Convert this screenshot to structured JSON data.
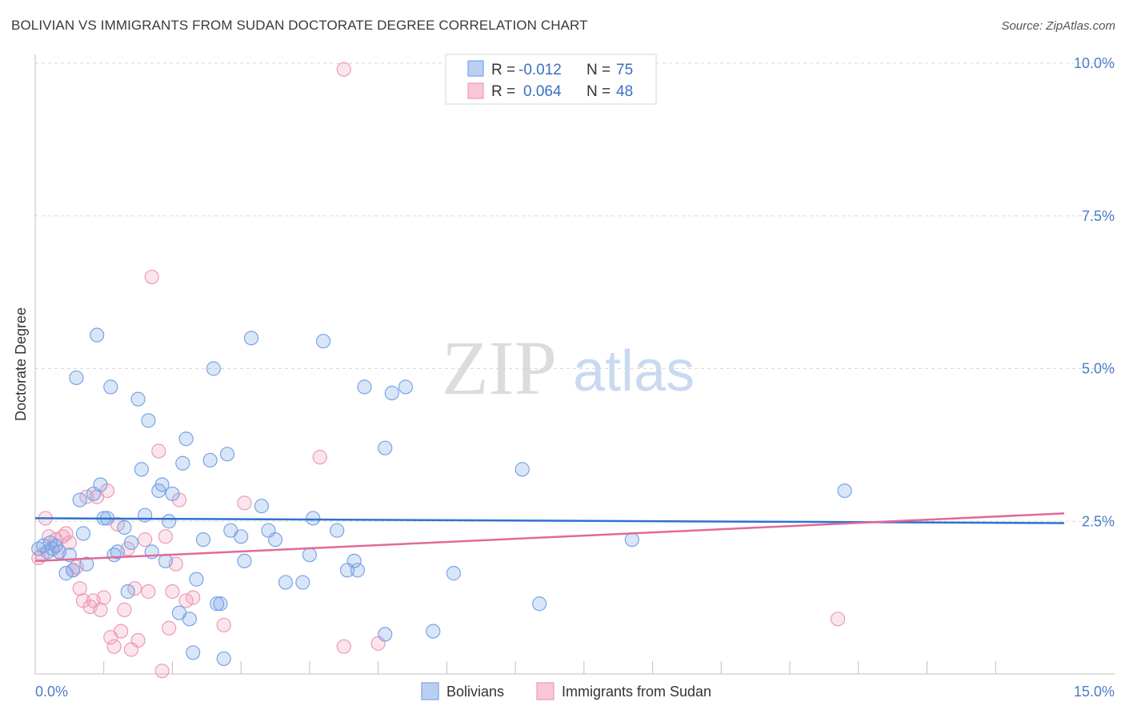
{
  "header": {
    "title": "BOLIVIAN VS IMMIGRANTS FROM SUDAN DOCTORATE DEGREE CORRELATION CHART",
    "source": "Source: ZipAtlas.com"
  },
  "watermark": {
    "part1": "ZIP",
    "part2": "atlas"
  },
  "colors": {
    "blue_fill": "rgba(120,165,230,0.28)",
    "blue_stroke": "#7aa3e6",
    "blue_line": "#2f72d0",
    "pink_fill": "rgba(240,150,180,0.25)",
    "pink_stroke": "#ee9ab8",
    "pink_line": "#e06a98",
    "grid": "#d9d9d9",
    "tick_label": "#4a7cc9"
  },
  "legend": {
    "rows": [
      {
        "r_label": "R =",
        "r_value": "-0.012",
        "n_label": "N =",
        "n_value": "75",
        "color": "blue"
      },
      {
        "r_label": "R =",
        "r_value": "0.064",
        "n_label": "N =",
        "n_value": "48",
        "color": "pink"
      }
    ]
  },
  "bottom_legend": {
    "items": [
      "Bolivians",
      "Immigrants from Sudan"
    ]
  },
  "chart_data": {
    "type": "scatter",
    "title": "BOLIVIAN VS IMMIGRANTS FROM SUDAN DOCTORATE DEGREE CORRELATION CHART",
    "xlabel": "",
    "ylabel": "Doctorate Degree",
    "xlim": [
      0,
      15
    ],
    "ylim": [
      0,
      10
    ],
    "x_tick_labels": [
      "0.0%",
      "15.0%"
    ],
    "y_ticks": [
      2.5,
      5.0,
      7.5,
      10.0
    ],
    "y_tick_labels": [
      "2.5%",
      "5.0%",
      "7.5%",
      "10.0%"
    ],
    "grid": true,
    "legend_position": "top-center",
    "series": [
      {
        "name": "Bolivians",
        "color": "blue",
        "trend": {
          "r": -0.012,
          "n": 75,
          "y_at_xmin": 2.55,
          "y_at_xmax": 2.47
        },
        "points": [
          [
            0.05,
            2.05
          ],
          [
            0.12,
            2.1
          ],
          [
            0.18,
            2.0
          ],
          [
            0.22,
            2.15
          ],
          [
            0.25,
            2.05
          ],
          [
            0.3,
            2.1
          ],
          [
            0.35,
            2.0
          ],
          [
            0.45,
            1.65
          ],
          [
            0.5,
            1.95
          ],
          [
            0.55,
            1.7
          ],
          [
            0.6,
            4.85
          ],
          [
            0.65,
            2.85
          ],
          [
            0.7,
            2.3
          ],
          [
            0.75,
            1.8
          ],
          [
            0.85,
            2.95
          ],
          [
            0.9,
            5.55
          ],
          [
            0.95,
            3.1
          ],
          [
            1.0,
            2.55
          ],
          [
            1.05,
            2.55
          ],
          [
            1.1,
            4.7
          ],
          [
            1.15,
            1.95
          ],
          [
            1.2,
            2.0
          ],
          [
            1.3,
            2.4
          ],
          [
            1.35,
            1.35
          ],
          [
            1.4,
            2.15
          ],
          [
            1.5,
            4.5
          ],
          [
            1.55,
            3.35
          ],
          [
            1.6,
            2.6
          ],
          [
            1.65,
            4.15
          ],
          [
            1.7,
            2.0
          ],
          [
            1.8,
            3.0
          ],
          [
            1.85,
            3.1
          ],
          [
            1.9,
            1.85
          ],
          [
            1.95,
            2.5
          ],
          [
            2.0,
            2.95
          ],
          [
            2.1,
            1.0
          ],
          [
            2.15,
            3.45
          ],
          [
            2.2,
            3.85
          ],
          [
            2.25,
            0.9
          ],
          [
            2.3,
            0.35
          ],
          [
            2.35,
            1.55
          ],
          [
            2.45,
            2.2
          ],
          [
            2.55,
            3.5
          ],
          [
            2.6,
            5.0
          ],
          [
            2.65,
            1.15
          ],
          [
            2.7,
            1.15
          ],
          [
            2.75,
            0.25
          ],
          [
            2.8,
            3.6
          ],
          [
            2.85,
            2.35
          ],
          [
            3.0,
            2.25
          ],
          [
            3.05,
            1.85
          ],
          [
            3.15,
            5.5
          ],
          [
            3.3,
            2.75
          ],
          [
            3.4,
            2.35
          ],
          [
            3.5,
            2.2
          ],
          [
            3.65,
            1.5
          ],
          [
            3.9,
            1.5
          ],
          [
            4.0,
            1.95
          ],
          [
            4.05,
            2.55
          ],
          [
            4.2,
            5.45
          ],
          [
            4.4,
            2.35
          ],
          [
            4.55,
            1.7
          ],
          [
            4.65,
            1.85
          ],
          [
            4.7,
            1.7
          ],
          [
            4.8,
            4.7
          ],
          [
            5.1,
            3.7
          ],
          [
            5.1,
            0.65
          ],
          [
            5.2,
            4.6
          ],
          [
            5.4,
            4.7
          ],
          [
            5.8,
            0.7
          ],
          [
            6.1,
            1.65
          ],
          [
            7.1,
            3.35
          ],
          [
            7.35,
            1.15
          ],
          [
            8.7,
            2.2
          ],
          [
            11.8,
            3.0
          ]
        ]
      },
      {
        "name": "Immigrants from Sudan",
        "color": "pink",
        "trend": {
          "r": 0.064,
          "n": 48,
          "y_at_xmin": 1.85,
          "y_at_xmax": 2.63
        },
        "points": [
          [
            0.05,
            1.9
          ],
          [
            0.1,
            1.95
          ],
          [
            0.15,
            2.55
          ],
          [
            0.2,
            2.25
          ],
          [
            0.3,
            2.2
          ],
          [
            0.35,
            2.0
          ],
          [
            0.4,
            2.25
          ],
          [
            0.45,
            2.3
          ],
          [
            0.5,
            2.15
          ],
          [
            0.55,
            1.7
          ],
          [
            0.6,
            1.75
          ],
          [
            0.65,
            1.4
          ],
          [
            0.7,
            1.2
          ],
          [
            0.75,
            2.9
          ],
          [
            0.8,
            1.1
          ],
          [
            0.85,
            1.2
          ],
          [
            0.9,
            2.9
          ],
          [
            0.95,
            1.05
          ],
          [
            1.0,
            1.25
          ],
          [
            1.05,
            3.0
          ],
          [
            1.1,
            0.6
          ],
          [
            1.15,
            0.45
          ],
          [
            1.2,
            2.45
          ],
          [
            1.25,
            0.7
          ],
          [
            1.3,
            1.05
          ],
          [
            1.35,
            2.05
          ],
          [
            1.4,
            0.4
          ],
          [
            1.45,
            1.4
          ],
          [
            1.5,
            0.55
          ],
          [
            1.6,
            2.2
          ],
          [
            1.65,
            1.35
          ],
          [
            1.7,
            6.5
          ],
          [
            1.8,
            3.65
          ],
          [
            1.85,
            0.05
          ],
          [
            1.9,
            2.25
          ],
          [
            1.95,
            0.75
          ],
          [
            2.0,
            1.35
          ],
          [
            2.05,
            1.8
          ],
          [
            2.1,
            2.85
          ],
          [
            2.2,
            1.2
          ],
          [
            2.3,
            1.25
          ],
          [
            2.75,
            0.8
          ],
          [
            3.05,
            2.8
          ],
          [
            4.15,
            3.55
          ],
          [
            4.5,
            0.45
          ],
          [
            4.5,
            9.9
          ],
          [
            5.0,
            0.5
          ],
          [
            11.7,
            0.9
          ]
        ]
      }
    ]
  }
}
